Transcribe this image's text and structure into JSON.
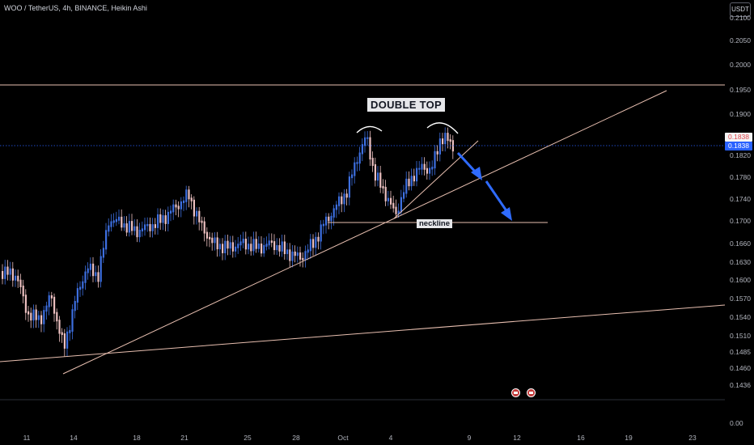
{
  "header": {
    "symbol_title": "WOO / TetherUS, 4h, BINANCE, Heikin Ashi",
    "currency_button": "USDT"
  },
  "price_axis": {
    "ticks": [
      "0.2100",
      "0.2050",
      "0.2000",
      "0.1950",
      "0.1900",
      "0.1820",
      "0.1780",
      "0.1740",
      "0.1700",
      "0.1660",
      "0.1630",
      "0.1600",
      "0.1570",
      "0.1540",
      "0.1510",
      "0.1485",
      "0.1460",
      "0.1436",
      "0.00"
    ],
    "current_price_tags": [
      "0.1838",
      "0.1838"
    ]
  },
  "time_axis": {
    "ticks": [
      "11",
      "14",
      "18",
      "21",
      "25",
      "28",
      "Oct",
      "4",
      "9",
      "12",
      "16",
      "19",
      "23"
    ]
  },
  "annotations": {
    "pattern_label": "DOUBLE TOP",
    "neckline_label": "neckline"
  },
  "colors": {
    "background": "#000000",
    "bull_candle": "#3d6fe0",
    "bear_candle": "#ecc0c0",
    "trendline": "#e8bfb0",
    "arrow": "#2f6bff",
    "price_line": "#2962ff"
  },
  "icons": [
    "event-flag-icon",
    "event-flag-icon"
  ]
}
